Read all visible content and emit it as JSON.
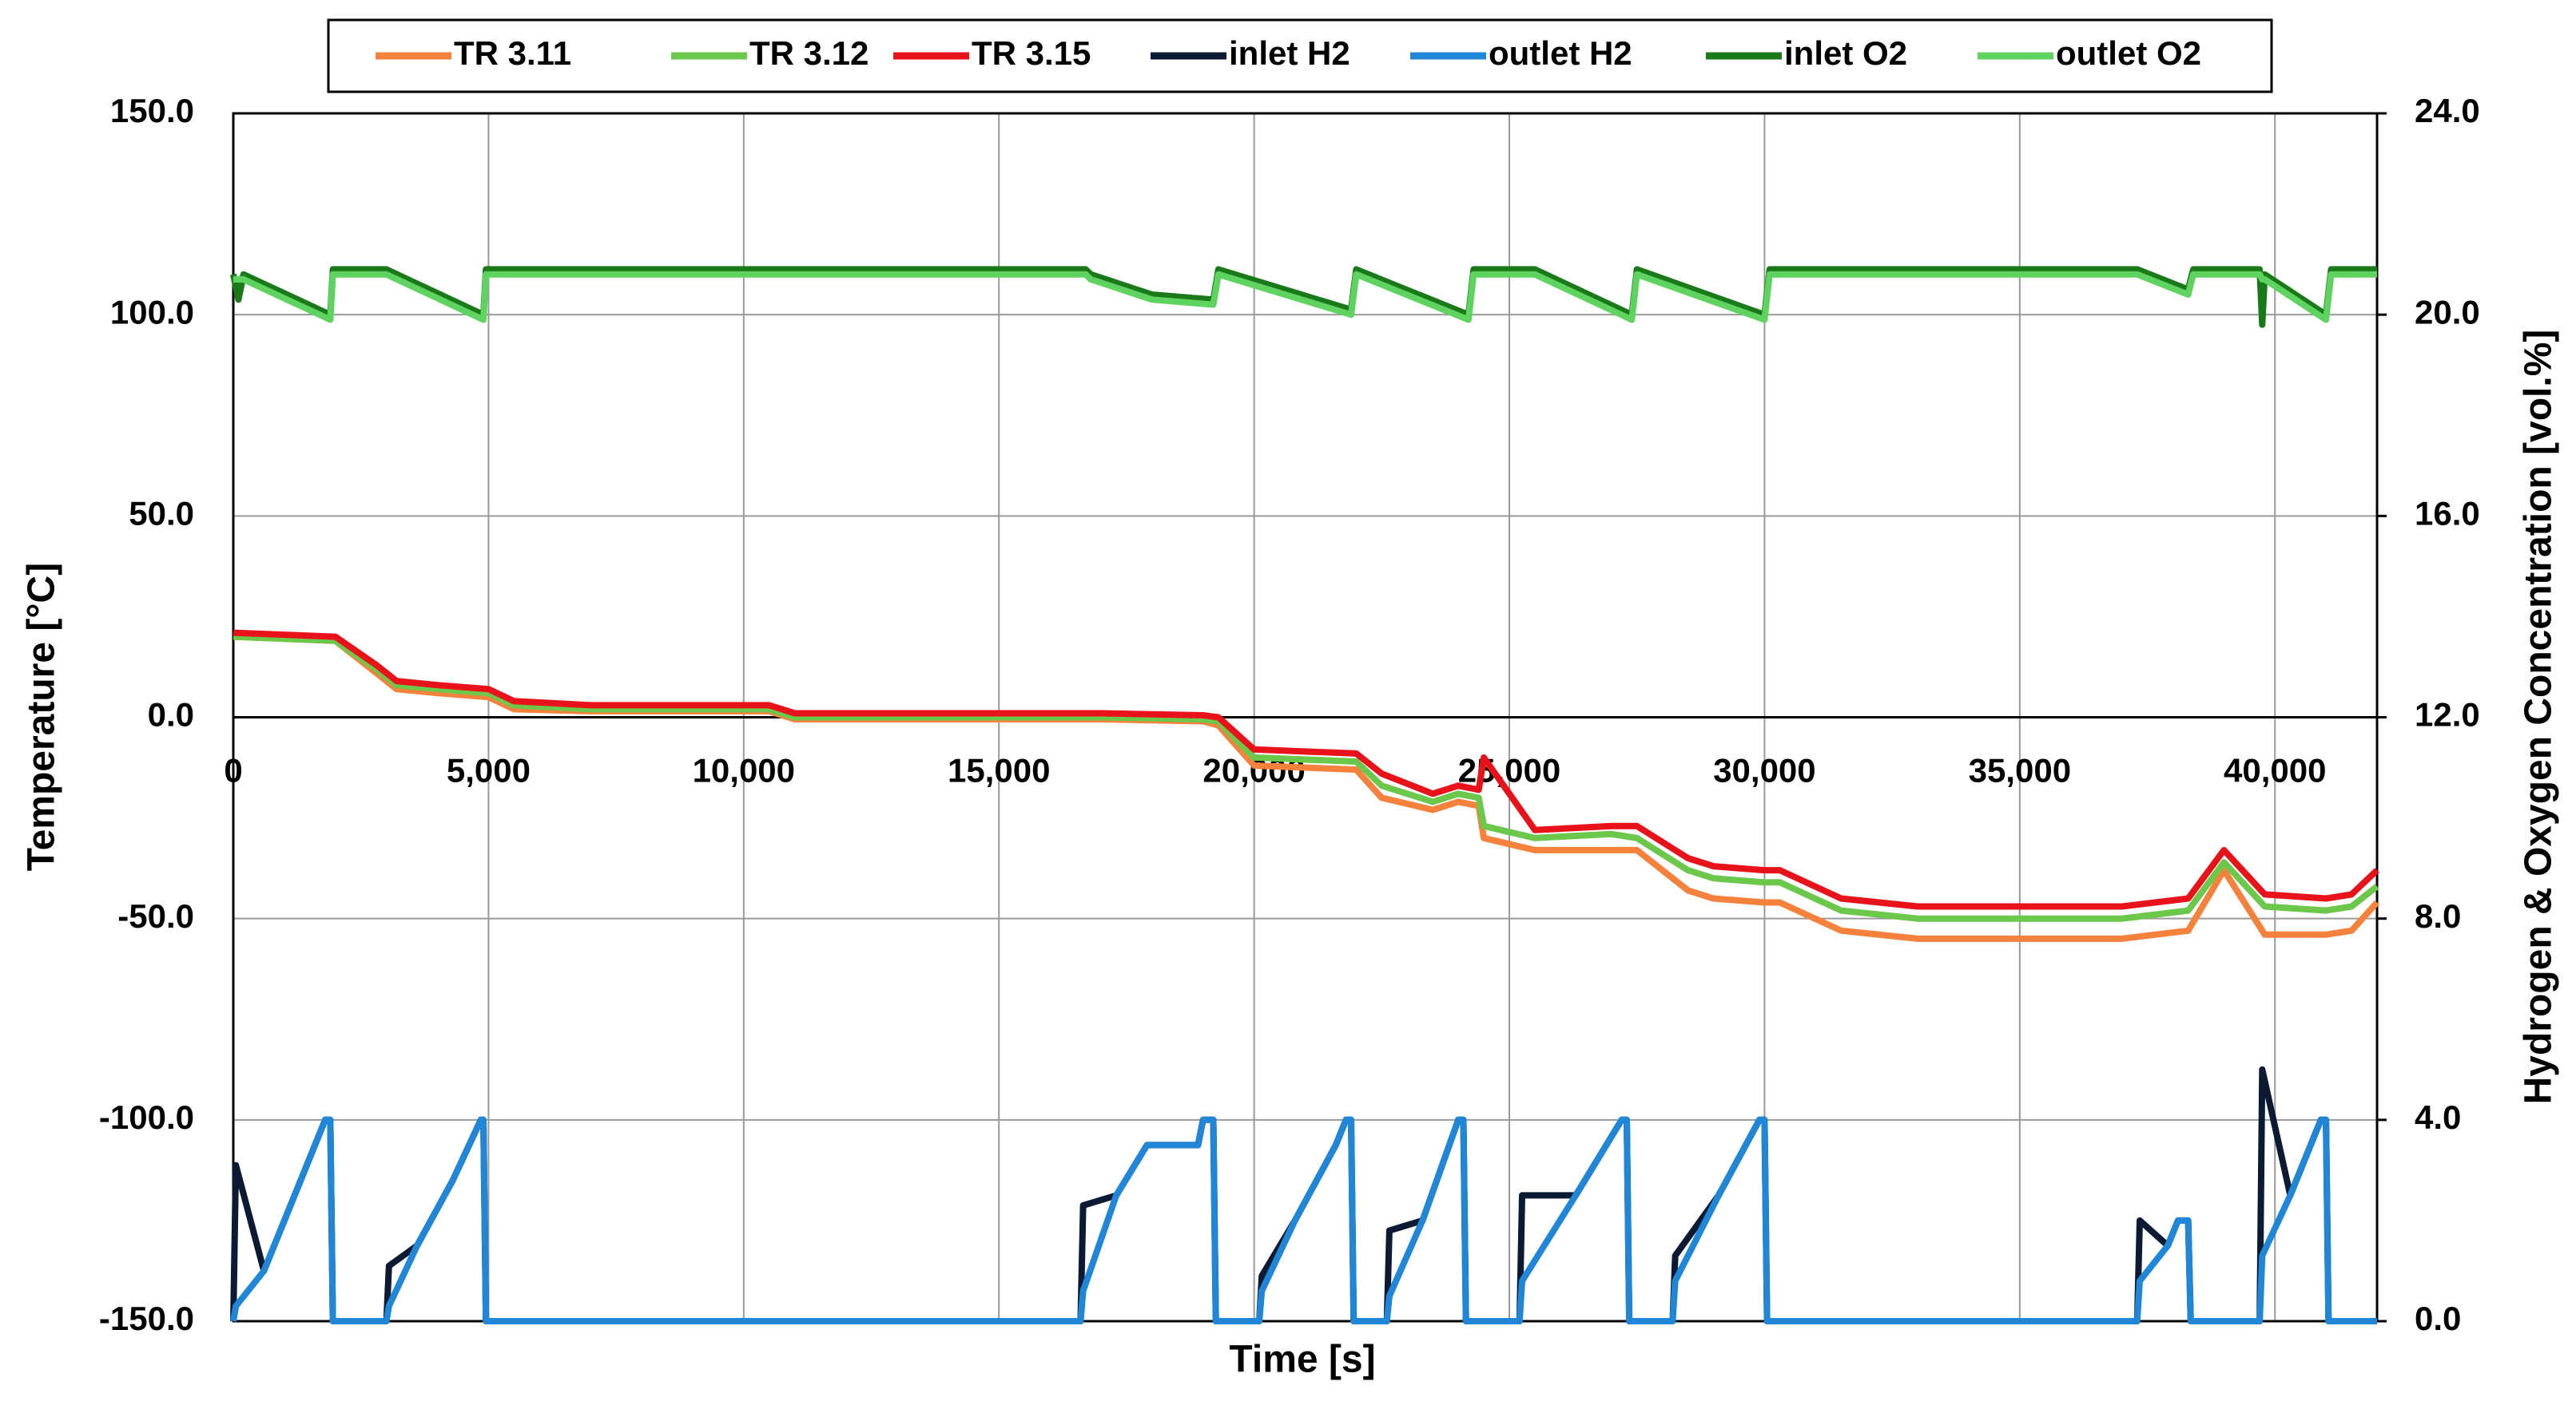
{
  "chart_data": {
    "type": "line",
    "x_label": "Time [s]",
    "y_label": "Temperature [°C]",
    "y2_label": "Hydrogen & Oxygen Concentration [vol.%]",
    "xlim": [
      0,
      42000
    ],
    "xticks": [
      0,
      {
        "value": 5000,
        "label": "5,000"
      },
      {
        "value": 10000,
        "label": "10,000"
      },
      {
        "value": 15000,
        "label": "15,000"
      },
      {
        "value": 20000,
        "label": "20,000"
      },
      {
        "value": 25000,
        "label": "25,000"
      },
      {
        "value": 30000,
        "label": "30,000"
      },
      {
        "value": 35000,
        "label": "35,000"
      },
      {
        "value": 40000,
        "label": "40,000"
      }
    ],
    "ylim": [
      -150,
      150
    ],
    "yticks": [
      {
        "value": -150,
        "label": "-150.0"
      },
      {
        "value": -100,
        "label": "-100.0"
      },
      {
        "value": -50,
        "label": "-50.0"
      },
      {
        "value": 0,
        "label": "0.0"
      },
      {
        "value": 50,
        "label": "50.0"
      },
      {
        "value": 100,
        "label": "100.0"
      },
      {
        "value": 150,
        "label": "150.0"
      }
    ],
    "y2lim": [
      0,
      24
    ],
    "y2ticks": [
      {
        "value": 0,
        "label": "0.0"
      },
      {
        "value": 4,
        "label": "4.0"
      },
      {
        "value": 8,
        "label": "8.0"
      },
      {
        "value": 12,
        "label": "12.0"
      },
      {
        "value": 16,
        "label": "16.0"
      },
      {
        "value": 20,
        "label": "20.0"
      },
      {
        "value": 24,
        "label": "24.0"
      }
    ],
    "grid": true,
    "legend": "top",
    "series": [
      {
        "name": "TR 3.11",
        "color": "#f4823c",
        "x": [
          0,
          2000,
          2800,
          3200,
          4000,
          5000,
          5500,
          7000,
          10500,
          11000,
          17000,
          19000,
          19300,
          20000,
          22000,
          22500,
          23500,
          24000,
          24400,
          24500,
          25500,
          27000,
          27500,
          28500,
          29000,
          30000,
          30300,
          31500,
          33000,
          37000,
          38300,
          39000,
          39800,
          41000,
          41500,
          42000
        ],
        "values": [
          20,
          19,
          11,
          7,
          6,
          5,
          2,
          1.5,
          1.5,
          -0.5,
          -0.5,
          -1,
          -2,
          -12,
          -13,
          -20,
          -23,
          -21,
          -22,
          -30,
          -33,
          -33,
          -33,
          -43,
          -45,
          -46,
          -46,
          -53,
          -55,
          -55,
          -53,
          -38,
          -54,
          -54,
          -53,
          -46
        ]
      },
      {
        "name": "TR 3.12",
        "color": "#6cc84a",
        "x": [
          0,
          2000,
          2800,
          3200,
          4000,
          5000,
          5500,
          7000,
          10500,
          11000,
          17000,
          19000,
          19300,
          20000,
          22000,
          22500,
          23500,
          24000,
          24400,
          24500,
          25500,
          27000,
          27500,
          28500,
          29000,
          30000,
          30300,
          31500,
          33000,
          37000,
          38300,
          39000,
          39800,
          41000,
          41500,
          42000
        ],
        "values": [
          20,
          19,
          12,
          8,
          7,
          6,
          3,
          2,
          2,
          0,
          0,
          -0.5,
          -1,
          -10,
          -11,
          -17,
          -21,
          -19,
          -20,
          -27,
          -30,
          -29,
          -30,
          -38,
          -40,
          -41,
          -41,
          -48,
          -50,
          -50,
          -48,
          -36,
          -47,
          -48,
          -47,
          -42
        ]
      },
      {
        "name": "TR 3.15",
        "color": "#e8121a",
        "x": [
          0,
          2000,
          2800,
          3200,
          4000,
          5000,
          5500,
          7000,
          10500,
          11000,
          17000,
          19000,
          19300,
          20000,
          22000,
          22500,
          23500,
          24000,
          24400,
          24500,
          25500,
          27000,
          27500,
          28500,
          29000,
          30000,
          30300,
          31500,
          33000,
          37000,
          38300,
          39000,
          39800,
          41000,
          41500,
          42000
        ],
        "values": [
          21,
          20,
          13,
          9,
          8,
          7,
          4,
          3,
          3,
          1,
          1,
          0.5,
          0,
          -8,
          -9,
          -14,
          -19,
          -17,
          -18,
          -10,
          -28,
          -27,
          -27,
          -35,
          -37,
          -38,
          -38,
          -45,
          -47,
          -47,
          -45,
          -33,
          -44,
          -45,
          -44,
          -38
        ]
      },
      {
        "name": "inlet H2",
        "color": "#0c1a33",
        "axis": "y2",
        "x": [
          0,
          50,
          600,
          1200,
          1800,
          1900,
          1950,
          3000,
          3050,
          3600,
          4300,
          4850,
          4900,
          4950,
          16600,
          16650,
          17300,
          17900,
          18900,
          19000,
          19200,
          19250,
          20100,
          20150,
          20800,
          21600,
          21800,
          21900,
          21950,
          22600,
          22650,
          23300,
          24000,
          24100,
          24150,
          25200,
          25250,
          26300,
          27200,
          27300,
          27350,
          28200,
          28250,
          29100,
          29900,
          30000,
          30050,
          37300,
          37350,
          37900,
          38100,
          38300,
          38350,
          39700,
          39750,
          40300,
          40900,
          41000,
          41050,
          42000
        ],
        "values": [
          0,
          3.1,
          1.0,
          2.5,
          4.0,
          4.0,
          0,
          0,
          1.1,
          1.5,
          2.8,
          4.0,
          4.0,
          0,
          0,
          2.3,
          2.5,
          3.5,
          3.5,
          4.0,
          4.0,
          0,
          0,
          0.9,
          2.0,
          3.5,
          4.0,
          4.0,
          0,
          0,
          1.8,
          2.0,
          4.0,
          4.0,
          0,
          0,
          2.5,
          2.5,
          4.0,
          4.0,
          0,
          0,
          1.3,
          2.5,
          4.0,
          4.0,
          0,
          0,
          2.0,
          1.5,
          2.0,
          2.0,
          0,
          0,
          5.0,
          2.5,
          4.0,
          4.0,
          0,
          0
        ]
      },
      {
        "name": "outlet H2",
        "color": "#1f86d8",
        "axis": "y2",
        "x": [
          0,
          50,
          600,
          1200,
          1800,
          1900,
          1950,
          3000,
          3050,
          3600,
          4300,
          4850,
          4900,
          4950,
          16600,
          16650,
          17300,
          17900,
          18900,
          19000,
          19200,
          19250,
          20100,
          20150,
          20800,
          21600,
          21800,
          21900,
          21950,
          22600,
          22650,
          23300,
          24000,
          24100,
          24150,
          25200,
          25250,
          26300,
          27200,
          27300,
          27350,
          28200,
          28250,
          29100,
          29900,
          30000,
          30050,
          37300,
          37350,
          37900,
          38100,
          38300,
          38350,
          39700,
          39750,
          40300,
          40900,
          41000,
          41050,
          42000
        ],
        "values": [
          0,
          0.3,
          1.0,
          2.5,
          4.0,
          4.0,
          0,
          0,
          0.3,
          1.5,
          2.8,
          4.0,
          4.0,
          0,
          0,
          0.6,
          2.5,
          3.5,
          3.5,
          4.0,
          4.0,
          0,
          0,
          0.6,
          2.0,
          3.5,
          4.0,
          4.0,
          0,
          0,
          0.5,
          2.0,
          4.0,
          4.0,
          0,
          0,
          0.8,
          2.5,
          4.0,
          4.0,
          0,
          0,
          0.8,
          2.5,
          4.0,
          4.0,
          0,
          0,
          0.8,
          1.5,
          2.0,
          2.0,
          0,
          0,
          1.3,
          2.5,
          4.0,
          4.0,
          0,
          0
        ]
      },
      {
        "name": "inlet O2",
        "color": "#1a7a1a",
        "axis": "y2",
        "x": [
          0,
          100,
          200,
          1900,
          1950,
          3000,
          4900,
          4950,
          16700,
          16800,
          18000,
          19200,
          19300,
          21900,
          22000,
          24200,
          24300,
          25500,
          27400,
          27500,
          30000,
          30100,
          37300,
          38300,
          38400,
          39700,
          39750,
          39800,
          41000,
          41100,
          42000
        ],
        "values": [
          20.8,
          20.3,
          20.8,
          20.0,
          20.9,
          20.9,
          20.0,
          20.9,
          20.9,
          20.8,
          20.4,
          20.3,
          20.9,
          20.1,
          20.9,
          20.0,
          20.9,
          20.9,
          20.0,
          20.9,
          20.0,
          20.9,
          20.9,
          20.5,
          20.9,
          20.9,
          19.8,
          20.8,
          20.0,
          20.9,
          20.9
        ]
      },
      {
        "name": "outlet O2",
        "color": "#5fd35f",
        "axis": "y2",
        "x": [
          0,
          100,
          200,
          1900,
          1950,
          3000,
          4900,
          4950,
          16700,
          16800,
          18000,
          19200,
          19300,
          21900,
          22000,
          24200,
          24300,
          25500,
          27400,
          27500,
          30000,
          30100,
          37300,
          38300,
          38400,
          39700,
          39750,
          39800,
          41000,
          41100,
          42000
        ],
        "values": [
          20.7,
          20.7,
          20.7,
          19.9,
          20.8,
          20.8,
          19.9,
          20.8,
          20.8,
          20.7,
          20.3,
          20.2,
          20.8,
          20.0,
          20.8,
          19.9,
          20.8,
          20.8,
          19.9,
          20.8,
          19.9,
          20.8,
          20.8,
          20.4,
          20.8,
          20.8,
          20.7,
          20.7,
          19.9,
          20.8,
          20.8
        ]
      }
    ]
  }
}
